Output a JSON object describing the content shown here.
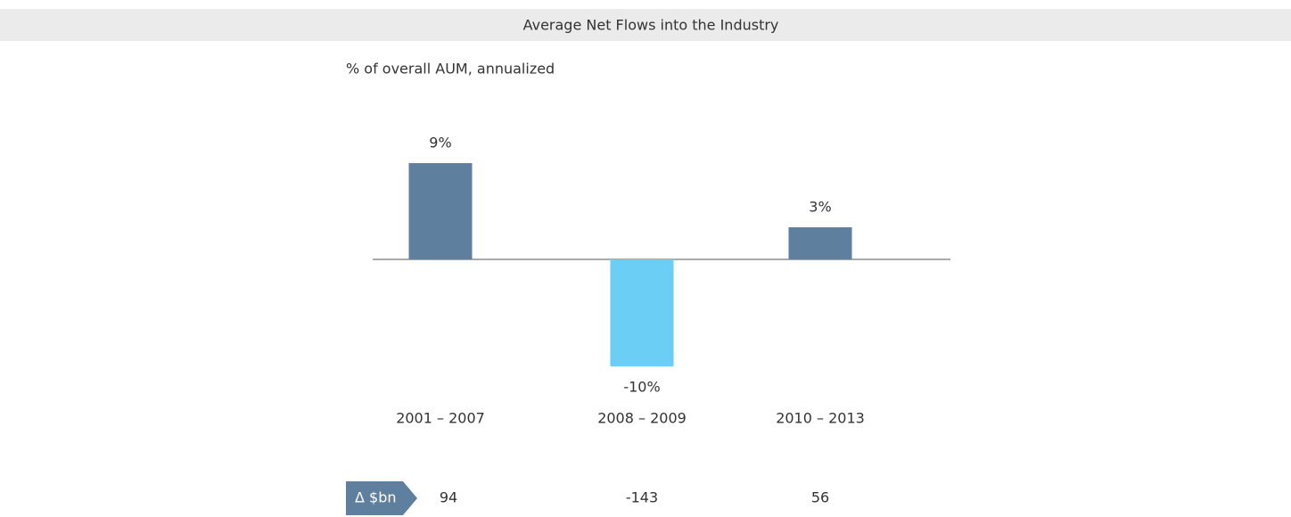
{
  "chart_data": {
    "type": "bar",
    "title": "Average Net Flows into the Industry",
    "subtitle": "% of overall AUM, annualized",
    "categories": [
      "2001 – 2007",
      "2008 – 2009",
      "2010 – 2013"
    ],
    "values": [
      9,
      -10,
      3
    ],
    "value_labels": [
      "9%",
      "-10%",
      "3%"
    ],
    "colors": [
      "#5f7f9f",
      "#6bcff5",
      "#5f7f9f"
    ],
    "delta_label": "Δ $bn",
    "delta_values": [
      94,
      -143,
      56
    ]
  }
}
